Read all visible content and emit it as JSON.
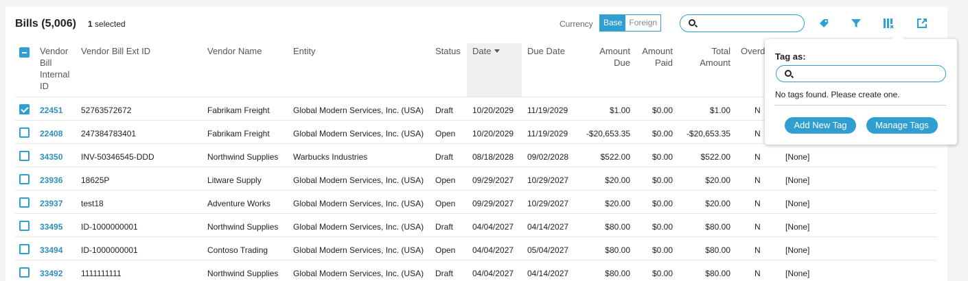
{
  "header": {
    "title": "Bills (5,006)",
    "selected_count": "1",
    "selected_label": "selected",
    "currency_label": "Currency",
    "currency_options": [
      "Base",
      "Foreign"
    ],
    "currency_active": "Base",
    "search_placeholder": ""
  },
  "toolbar_icons": [
    "tag-icon",
    "filter-icon",
    "columns-icon",
    "export-icon"
  ],
  "columns": [
    "Vendor\nBill\nInternal\nID",
    "Vendor Bill Ext ID",
    "Vendor Name",
    "Entity",
    "Status",
    "Date",
    "Due Date",
    "Amount\nDue",
    "Amount\nPaid",
    "Total\nAmount",
    "Overd"
  ],
  "rows": [
    {
      "checked": true,
      "id": "22451",
      "ext": "52763572672",
      "vendor": "Fabrikam Freight",
      "entity": "Global Modern Services, Inc. (USA)",
      "status": "Draft",
      "date": "10/20/2029",
      "due": "11/19/2029",
      "amt_due": "$1.00",
      "amt_paid": "$0.00",
      "total": "$1.00",
      "overdue": "N",
      "tags": ""
    },
    {
      "checked": false,
      "id": "22408",
      "ext": "247384783401",
      "vendor": "Fabrikam Freight",
      "entity": "Global Modern Services, Inc. (USA)",
      "status": "Open",
      "date": "10/20/2029",
      "due": "11/19/2029",
      "amt_due": "-$20,653.35",
      "amt_paid": "$0.00",
      "total": "-$20,653.35",
      "overdue": "N",
      "tags": ""
    },
    {
      "checked": false,
      "id": "34350",
      "ext": "INV-50346545-DDD",
      "vendor": "Northwind Supplies",
      "entity": "Warbucks Industries",
      "status": "Draft",
      "date": "08/18/2028",
      "due": "09/02/2028",
      "amt_due": "$522.00",
      "amt_paid": "$0.00",
      "total": "$522.00",
      "overdue": "N",
      "tags": "[None]"
    },
    {
      "checked": false,
      "id": "23936",
      "ext": "18625P",
      "vendor": "Litware Supply",
      "entity": "Global Modern Services, Inc. (USA)",
      "status": "Open",
      "date": "09/29/2027",
      "due": "10/29/2027",
      "amt_due": "$20.00",
      "amt_paid": "$0.00",
      "total": "$20.00",
      "overdue": "N",
      "tags": "[None]"
    },
    {
      "checked": false,
      "id": "23937",
      "ext": "test18",
      "vendor": "Adventure Works",
      "entity": "Global Modern Services, Inc. (USA)",
      "status": "Open",
      "date": "09/29/2027",
      "due": "10/29/2027",
      "amt_due": "$20.00",
      "amt_paid": "$0.00",
      "total": "$20.00",
      "overdue": "N",
      "tags": "[None]"
    },
    {
      "checked": false,
      "id": "33495",
      "ext": "ID-1000000001",
      "vendor": "Northwind Supplies",
      "entity": "Global Modern Services, Inc. (USA)",
      "status": "Draft",
      "date": "04/04/2027",
      "due": "04/14/2027",
      "amt_due": "$80.00",
      "amt_paid": "$0.00",
      "total": "$80.00",
      "overdue": "N",
      "tags": "[None]"
    },
    {
      "checked": false,
      "id": "33494",
      "ext": "ID-1000000001",
      "vendor": "Contoso Trading",
      "entity": "Global Modern Services, Inc. (USA)",
      "status": "Open",
      "date": "04/04/2027",
      "due": "05/04/2027",
      "amt_due": "$80.00",
      "amt_paid": "$0.00",
      "total": "$80.00",
      "overdue": "N",
      "tags": "[None]"
    },
    {
      "checked": false,
      "id": "33492",
      "ext": "1111111111",
      "vendor": "Northwind Supplies",
      "entity": "Global Modern Services, Inc. (USA)",
      "status": "Draft",
      "date": "04/04/2027",
      "due": "04/14/2027",
      "amt_due": "$80.00",
      "amt_paid": "$0.00",
      "total": "$80.00",
      "overdue": "N",
      "tags": "[None]"
    }
  ],
  "tag_popover": {
    "label": "Tag as:",
    "search_placeholder": "",
    "empty_message": "No tags found. Please create one.",
    "add_button": "Add New Tag",
    "manage_button": "Manage Tags"
  },
  "colors": {
    "accent": "#2f9fd1",
    "link": "#2f8fc1"
  }
}
